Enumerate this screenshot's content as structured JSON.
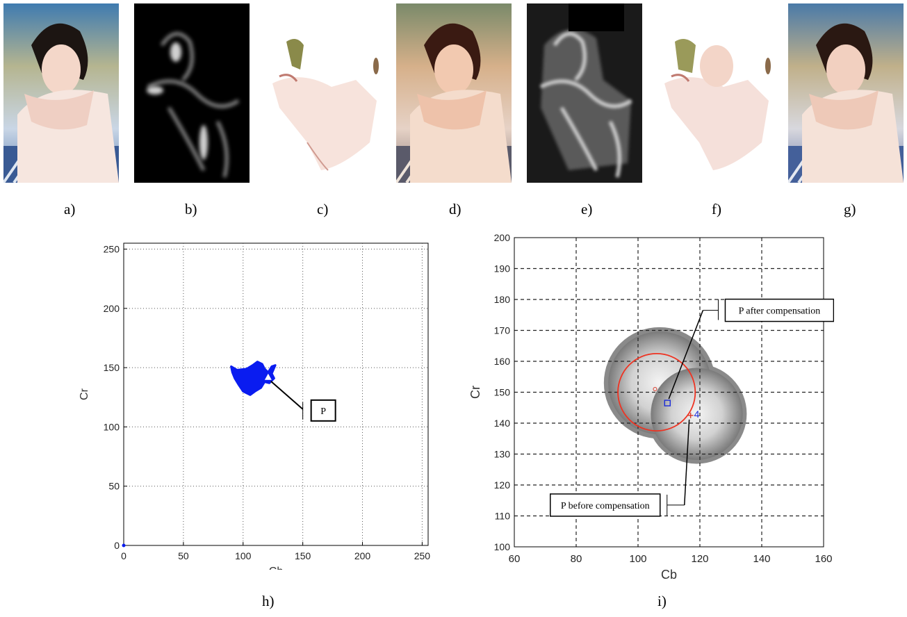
{
  "panel_labels": {
    "a": "a)",
    "b": "b)",
    "c": "c)",
    "d": "d)",
    "e": "e)",
    "f": "f)",
    "g": "g)",
    "h": "h)",
    "i": "i)"
  },
  "thumbnails": [
    {
      "id": "a",
      "kind": "photo-original"
    },
    {
      "id": "b",
      "kind": "probability-map-dark"
    },
    {
      "id": "c",
      "kind": "segmented-skin"
    },
    {
      "id": "d",
      "kind": "photo-warm"
    },
    {
      "id": "e",
      "kind": "probability-map-bright"
    },
    {
      "id": "f",
      "kind": "segmented-skin-compensated"
    },
    {
      "id": "g",
      "kind": "photo-compensated"
    }
  ],
  "colors": {
    "cluster": "#0a1cf0",
    "circle": "#ee3322",
    "grid": "#555555",
    "marker_after": "#1a2ad8",
    "marker_before": "#d83a2a"
  },
  "chart_data": [
    {
      "type": "scatter",
      "panel": "h",
      "title": "",
      "xlabel": "Cb",
      "ylabel": "Cr",
      "xlim": [
        0,
        255
      ],
      "ylim": [
        0,
        255
      ],
      "xticks": [
        0,
        50,
        100,
        150,
        200,
        250
      ],
      "yticks": [
        0,
        50,
        100,
        150,
        200,
        250
      ],
      "grid": "dotted",
      "cluster_outline_cb_cr": [
        [
          90,
          151
        ],
        [
          95,
          148
        ],
        [
          103,
          149
        ],
        [
          108,
          152
        ],
        [
          112,
          155
        ],
        [
          116,
          153
        ],
        [
          118,
          149
        ],
        [
          121,
          146
        ],
        [
          124,
          151
        ],
        [
          127,
          152
        ],
        [
          124,
          145
        ],
        [
          126,
          141
        ],
        [
          122,
          137
        ],
        [
          118,
          138
        ],
        [
          115,
          133
        ],
        [
          110,
          130
        ],
        [
          106,
          127
        ],
        [
          100,
          130
        ],
        [
          96,
          136
        ],
        [
          93,
          141
        ],
        [
          91,
          146
        ]
      ],
      "points": [
        {
          "label": "P",
          "cb": 121,
          "cr": 142
        }
      ],
      "origin_point": {
        "cb": 0,
        "cr": 0
      },
      "annotation": {
        "text": "P"
      }
    },
    {
      "type": "heatmap",
      "panel": "i",
      "title": "",
      "xlabel": "Cb",
      "ylabel": "Cr",
      "xlim": [
        60,
        160
      ],
      "ylim": [
        100,
        200
      ],
      "xticks": [
        60,
        80,
        100,
        120,
        140,
        160
      ],
      "yticks": [
        100,
        110,
        120,
        130,
        140,
        150,
        160,
        170,
        180,
        190,
        200
      ],
      "grid": "dashed",
      "blobs": [
        {
          "cb": 107,
          "cr": 153,
          "sigma": 9.5
        },
        {
          "cb": 119,
          "cr": 143,
          "sigma": 8.5
        }
      ],
      "circle": {
        "cb": 106,
        "cr": 150,
        "radius": 12.5
      },
      "markers": [
        {
          "name": "circle-center",
          "symbol": "o",
          "cb": 105.5,
          "cr": 151
        },
        {
          "name": "P after compensation",
          "symbol": "square",
          "cb": 109.5,
          "cr": 146.5
        },
        {
          "name": "P before compensation",
          "symbol": "+",
          "cb": 117,
          "cr": 142.5
        }
      ],
      "marker_number": "4",
      "annotations": [
        {
          "text": "P after compensation"
        },
        {
          "text": "P before compensation"
        }
      ]
    }
  ]
}
